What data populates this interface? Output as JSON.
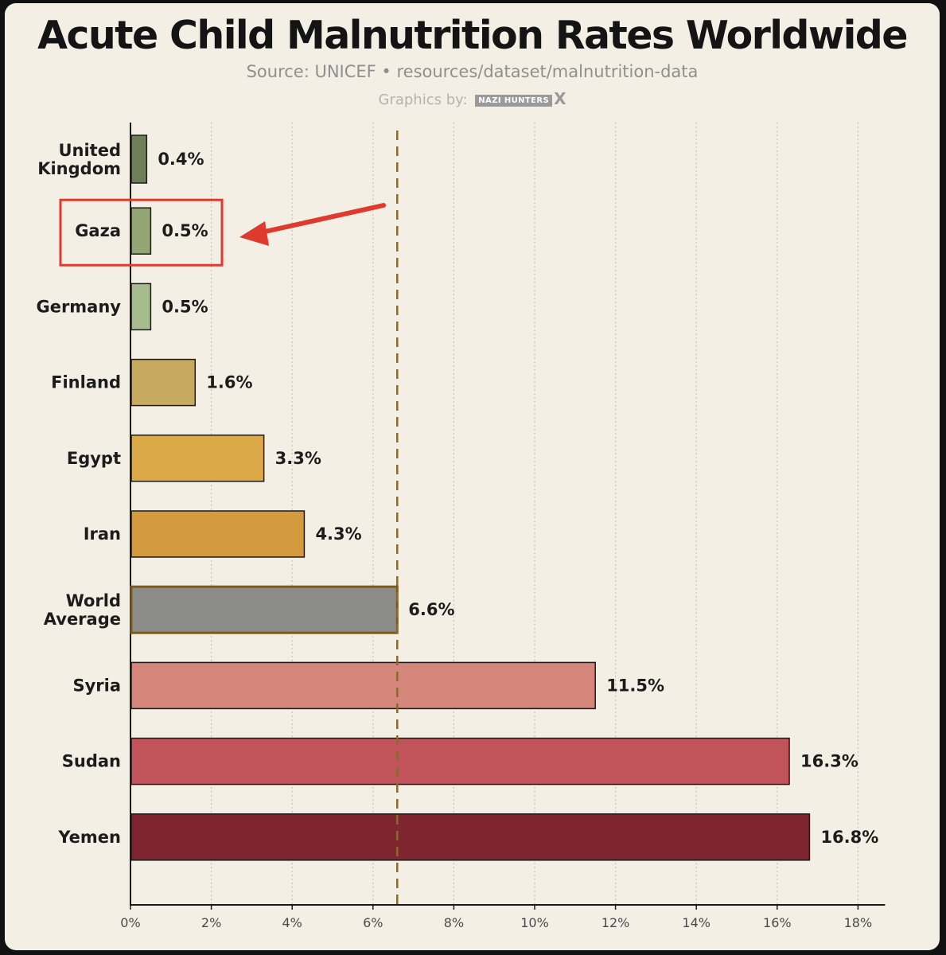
{
  "header": {
    "title": "Acute Child Malnutrition Rates Worldwide",
    "subtitle": "Source: UNICEF • resources/dataset/malnutrition-data",
    "credit_prefix": "Graphics by:",
    "credit_logo": "NAZI HUNTERS",
    "credit_x": "X"
  },
  "chart_data": {
    "type": "bar",
    "orientation": "horizontal",
    "title": "Acute Child Malnutrition Rates Worldwide",
    "categories": [
      "United Kingdom",
      "Gaza",
      "Germany",
      "Finland",
      "Egypt",
      "Iran",
      "World Average",
      "Syria",
      "Sudan",
      "Yemen"
    ],
    "values": [
      0.4,
      0.5,
      0.5,
      1.6,
      3.3,
      4.3,
      6.6,
      11.5,
      16.3,
      16.8
    ],
    "value_labels": [
      "0.4%",
      "0.5%",
      "0.5%",
      "1.6%",
      "3.3%",
      "4.3%",
      "6.6%",
      "11.5%",
      "16.3%",
      "16.8%"
    ],
    "colors": [
      "#6e7f57",
      "#93a572",
      "#a7bc8c",
      "#c8a960",
      "#dca948",
      "#d39a3e",
      "#8c8c8a",
      "#d4867a",
      "#c0545a",
      "#7f2530"
    ],
    "xlim": [
      0,
      18
    ],
    "xticks": [
      "0%",
      "2%",
      "4%",
      "6%",
      "8%",
      "10%",
      "12%",
      "14%",
      "16%",
      "18%"
    ],
    "reference_line": {
      "value": 6.6,
      "style": "dashed",
      "color": "#8a6a2c"
    },
    "highlight": {
      "category": "Gaza",
      "box_color": "#e03a2e",
      "arrow": true
    },
    "grid": "vertical dotted",
    "xlabel": "",
    "ylabel": ""
  }
}
